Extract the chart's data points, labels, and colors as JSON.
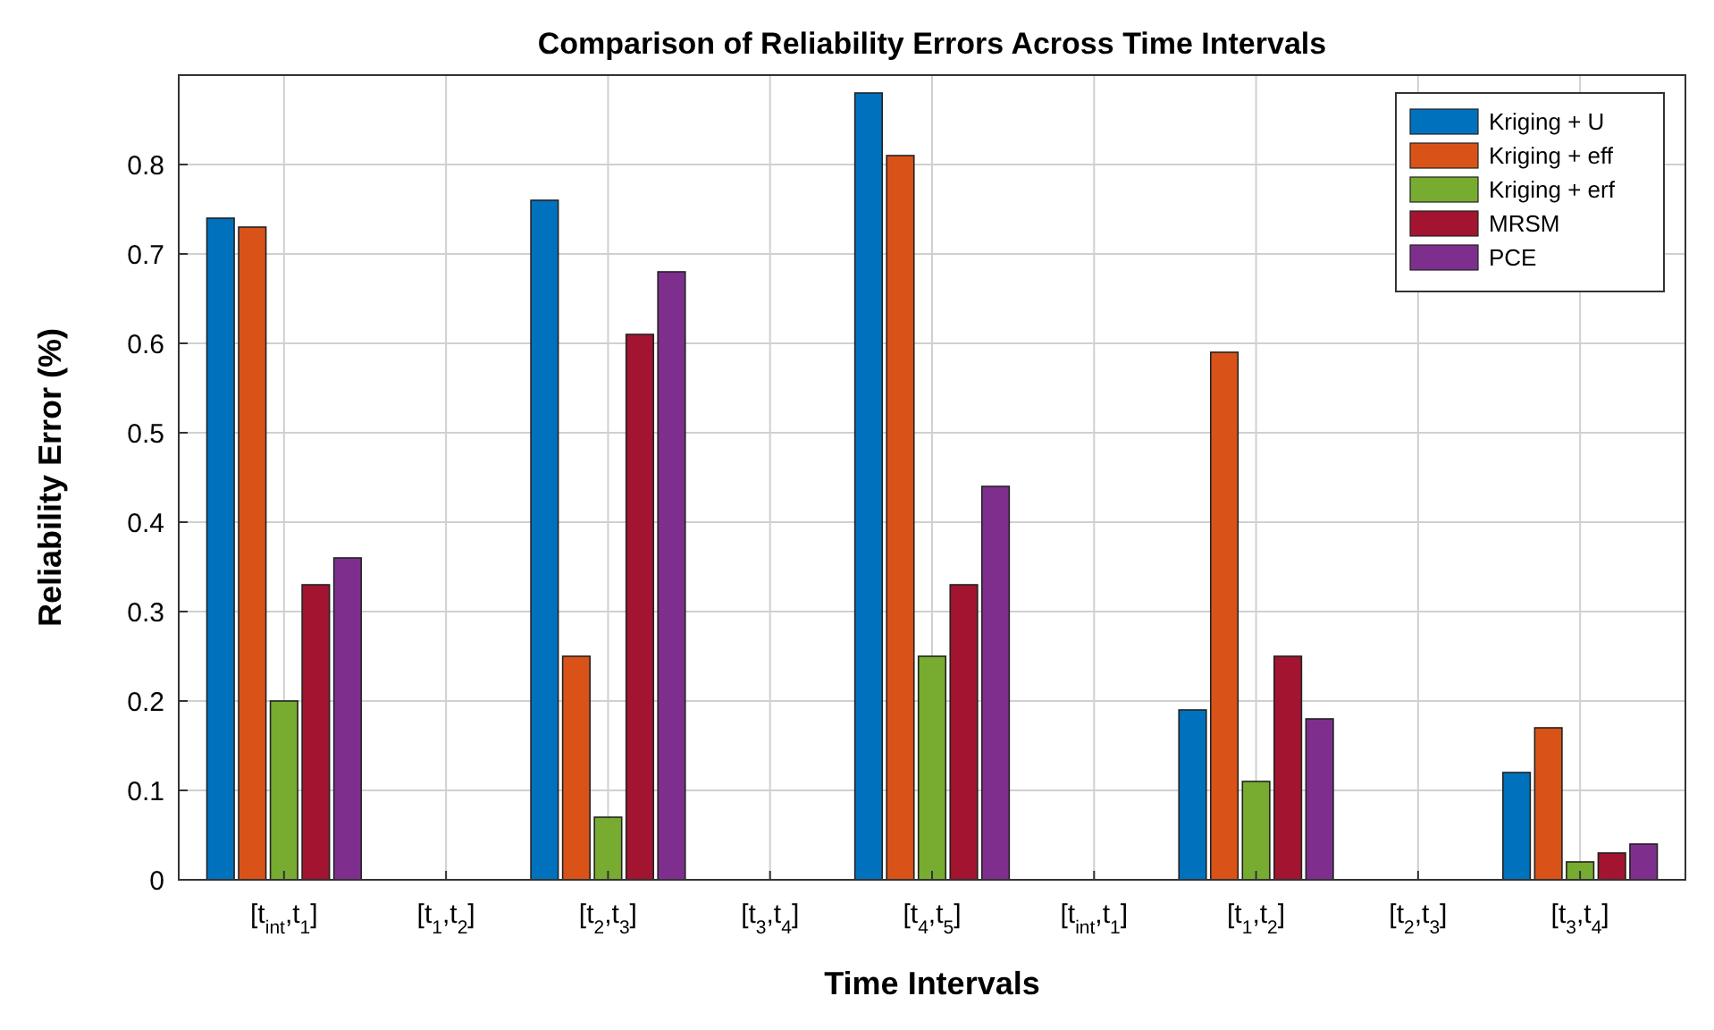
{
  "chart_data": {
    "type": "bar",
    "title": "Comparison of Reliability Errors Across Time Intervals",
    "xlabel": "Time Intervals",
    "ylabel": "Reliability Error (%)",
    "categories": [
      "[t$_{int}$,t$_{1}$]",
      "[t$_{1}$,t$_{2}$]",
      "[t$_{2}$,t$_{3}$]",
      "[t$_{3}$,t$_{4}$]",
      "[t$_{4}$,t$_{5}$]",
      "[t$_{int}$,t$_{1}$]",
      "[t$_{1}$,t$_{2}$]",
      "[t$_{2}$,t$_{3}$]",
      "[t$_{3}$,t$_{4}$]"
    ],
    "series": [
      {
        "name": "Kriging + U",
        "color": "#0072bd",
        "values": [
          0.74,
          null,
          0.76,
          null,
          0.88,
          null,
          0.19,
          null,
          0.12
        ]
      },
      {
        "name": "Kriging + eff",
        "color": "#d95319",
        "values": [
          0.73,
          null,
          0.25,
          null,
          0.81,
          null,
          0.59,
          null,
          0.17
        ]
      },
      {
        "name": "Kriging + erf",
        "color": "#77ac30",
        "values": [
          0.2,
          null,
          0.07,
          null,
          0.25,
          null,
          0.11,
          null,
          0.02
        ]
      },
      {
        "name": "MRSM",
        "color": "#a2142f",
        "values": [
          0.33,
          null,
          0.61,
          null,
          0.33,
          null,
          0.25,
          null,
          0.03
        ]
      },
      {
        "name": "PCE",
        "color": "#7e2f8e",
        "values": [
          0.36,
          null,
          0.68,
          null,
          0.44,
          null,
          0.18,
          null,
          0.04
        ]
      }
    ],
    "ylim": [
      0,
      0.9
    ],
    "yticks": [
      0,
      0.1,
      0.2,
      0.3,
      0.4,
      0.5,
      0.6,
      0.7,
      0.8
    ],
    "grid": true,
    "legend": "top right"
  }
}
